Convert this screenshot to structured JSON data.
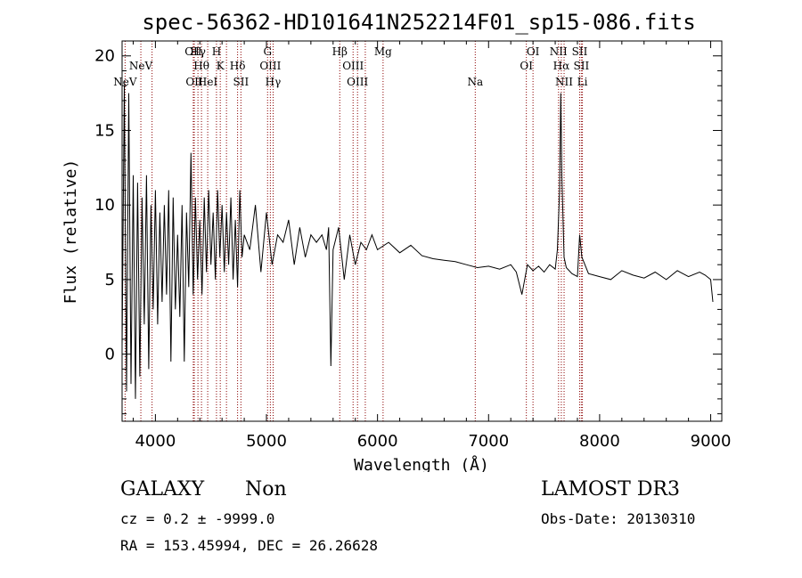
{
  "chart_data": {
    "type": "line",
    "title": "spec-56362-HD101641N252214F01_sp15-086.fits",
    "xlabel": "Wavelength (Å)",
    "ylabel": "Flux (relative)",
    "xlim": [
      3700,
      9100
    ],
    "ylim": [
      -4.5,
      21
    ],
    "x_ticks": [
      4000,
      5000,
      6000,
      7000,
      8000,
      9000
    ],
    "x_tick_labels": [
      "4000",
      "5000",
      "6000",
      "7000",
      "8000",
      "9000"
    ],
    "y_ticks": [
      0,
      5,
      10,
      15,
      20
    ],
    "y_tick_labels": [
      "0",
      "5",
      "10",
      "15",
      "20"
    ],
    "grid": false,
    "line_color": "#000000",
    "marker_color": "#8b0000",
    "series": [
      {
        "x": [
          3700,
          3720,
          3740,
          3760,
          3780,
          3800,
          3820,
          3840,
          3860,
          3880,
          3900,
          3920,
          3940,
          3960,
          3980,
          4000,
          4020,
          4040,
          4060,
          4080,
          4100,
          4120,
          4140,
          4160,
          4180,
          4200,
          4220,
          4240,
          4260,
          4280,
          4300,
          4320,
          4340,
          4360,
          4380,
          4400,
          4420,
          4440,
          4460,
          4480,
          4500,
          4520,
          4540,
          4560,
          4580,
          4600,
          4620,
          4640,
          4660,
          4680,
          4700,
          4720,
          4740,
          4760,
          4780,
          4800,
          4850,
          4900,
          4950,
          5000,
          5050,
          5100,
          5150,
          5200,
          5250,
          5300,
          5350,
          5400,
          5450,
          5500,
          5540,
          5560,
          5580,
          5600,
          5650,
          5700,
          5750,
          5800,
          5850,
          5900,
          5950,
          6000,
          6100,
          6200,
          6300,
          6400,
          6500,
          6600,
          6700,
          6800,
          6900,
          7000,
          7100,
          7200,
          7250,
          7300,
          7350,
          7400,
          7450,
          7500,
          7550,
          7600,
          7620,
          7640,
          7650,
          7660,
          7680,
          7700,
          7750,
          7800,
          7820,
          7840,
          7900,
          8000,
          8100,
          8200,
          8300,
          8400,
          8500,
          8600,
          8700,
          8800,
          8900,
          8950,
          9000,
          9020
        ],
        "y": [
          0.5,
          18.0,
          -2.5,
          17.5,
          -2.0,
          12.0,
          -3.0,
          11.5,
          -1.5,
          10.5,
          2.0,
          12.0,
          -1.0,
          10.0,
          3.0,
          11.0,
          2.0,
          9.5,
          3.5,
          10.0,
          4.0,
          11.0,
          -0.5,
          10.5,
          3.0,
          8.0,
          2.5,
          10.0,
          -0.5,
          9.5,
          4.5,
          13.5,
          4.0,
          10.5,
          5.0,
          9.0,
          4.0,
          10.5,
          5.5,
          11.0,
          6.0,
          9.5,
          5.0,
          11.0,
          6.5,
          10.0,
          5.5,
          9.5,
          6.0,
          10.5,
          5.0,
          9.0,
          4.5,
          11.0,
          6.5,
          8.0,
          7.0,
          10.0,
          5.5,
          9.5,
          6.0,
          8.0,
          7.5,
          9.0,
          6.0,
          8.5,
          6.5,
          8.0,
          7.5,
          8.0,
          7.0,
          8.5,
          -0.8,
          7.0,
          8.5,
          5.0,
          8.0,
          6.0,
          7.5,
          7.0,
          8.0,
          7.0,
          7.5,
          6.8,
          7.3,
          6.6,
          6.4,
          6.3,
          6.2,
          6.0,
          5.8,
          5.9,
          5.7,
          6.0,
          5.5,
          4.0,
          6.0,
          5.6,
          5.9,
          5.5,
          6.0,
          5.7,
          7.0,
          11.0,
          17.5,
          12.0,
          6.5,
          5.8,
          5.4,
          5.2,
          8.0,
          6.5,
          5.4,
          5.2,
          5.0,
          5.6,
          5.3,
          5.1,
          5.5,
          5.0,
          5.6,
          5.2,
          5.5,
          5.3,
          5.0,
          3.5
        ]
      }
    ],
    "line_markers": [
      {
        "x": 3727,
        "label": "NeV",
        "row": 3
      },
      {
        "x": 3869,
        "label": "NeV",
        "row": 2
      },
      {
        "x": 3970,
        "label": "",
        "row": 0
      },
      {
        "x": 4341,
        "label": "OII",
        "row": 1
      },
      {
        "x": 4350,
        "label": "OII",
        "row": 3
      },
      {
        "x": 4383,
        "label": "Hγ",
        "row": 1
      },
      {
        "x": 4415,
        "label": "Hθ",
        "row": 2
      },
      {
        "x": 4471,
        "label": "HeI",
        "row": 3
      },
      {
        "x": 4550,
        "label": "H",
        "row": 1
      },
      {
        "x": 4584,
        "label": "K",
        "row": 2
      },
      {
        "x": 4640,
        "label": "",
        "row": 0
      },
      {
        "x": 4740,
        "label": "Hδ",
        "row": 2
      },
      {
        "x": 4770,
        "label": "SII",
        "row": 3
      },
      {
        "x": 5010,
        "label": "G",
        "row": 1
      },
      {
        "x": 5035,
        "label": "OIII",
        "row": 2
      },
      {
        "x": 5060,
        "label": "Hγ",
        "row": 3
      },
      {
        "x": 5660,
        "label": "Hβ",
        "row": 1
      },
      {
        "x": 5780,
        "label": "OIII",
        "row": 2
      },
      {
        "x": 5820,
        "label": "OIII",
        "row": 3
      },
      {
        "x": 5890,
        "label": "",
        "row": 0
      },
      {
        "x": 6050,
        "label": "Mg",
        "row": 1
      },
      {
        "x": 6880,
        "label": "Na",
        "row": 3
      },
      {
        "x": 7340,
        "label": "OI",
        "row": 2
      },
      {
        "x": 7400,
        "label": "OI",
        "row": 1
      },
      {
        "x": 7630,
        "label": "NII",
        "row": 1
      },
      {
        "x": 7655,
        "label": "Hα",
        "row": 2
      },
      {
        "x": 7680,
        "label": "NII",
        "row": 3
      },
      {
        "x": 7820,
        "label": "SII",
        "row": 1
      },
      {
        "x": 7835,
        "label": "SII",
        "row": 2
      },
      {
        "x": 7845,
        "label": "Li",
        "row": 3
      }
    ]
  },
  "info": {
    "object_class": "GALAXY",
    "subclass": "Non",
    "survey": "LAMOST DR3",
    "redshift": "cz = 0.2 ± -9999.0",
    "obs_date": "Obs-Date: 20130310",
    "coords": "RA = 153.45994, DEC =  26.26628"
  }
}
